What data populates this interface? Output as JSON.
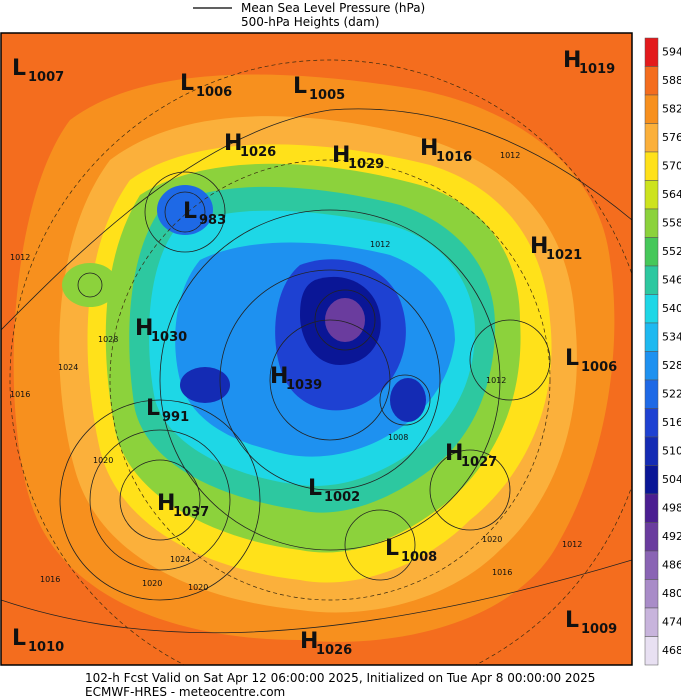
{
  "legend": {
    "items": [
      "Mean Sea Level Pressure (hPa)",
      "500-hPa Heights (dam)"
    ]
  },
  "colorbar": {
    "levels": [
      {
        "value": 594,
        "color": "#e31a1c"
      },
      {
        "value": 588,
        "color": "#f46d1e"
      },
      {
        "value": 582,
        "color": "#f7901e"
      },
      {
        "value": 576,
        "color": "#fbb03b"
      },
      {
        "value": 570,
        "color": "#ffe11a"
      },
      {
        "value": 564,
        "color": "#cde31e"
      },
      {
        "value": 558,
        "color": "#8cd23c"
      },
      {
        "value": 552,
        "color": "#46c85a"
      },
      {
        "value": 546,
        "color": "#2dc8a0"
      },
      {
        "value": 540,
        "color": "#1ed7e6"
      },
      {
        "value": 534,
        "color": "#1eb9f0"
      },
      {
        "value": 528,
        "color": "#1e91f0"
      },
      {
        "value": 522,
        "color": "#1e69e6"
      },
      {
        "value": 516,
        "color": "#1e41d2"
      },
      {
        "value": 510,
        "color": "#142bb4"
      },
      {
        "value": 504,
        "color": "#0a1696"
      },
      {
        "value": 498,
        "color": "#4b1e91"
      },
      {
        "value": 492,
        "color": "#6a3c9e"
      },
      {
        "value": 486,
        "color": "#8a64b4"
      },
      {
        "value": 480,
        "color": "#a98cc8"
      },
      {
        "value": 474,
        "color": "#c8b4dc"
      },
      {
        "value": 468,
        "color": "#e8e0f2"
      }
    ]
  },
  "centers": [
    {
      "type": "L",
      "value": 1007
    },
    {
      "type": "L",
      "value": 1006
    },
    {
      "type": "L",
      "value": 1005
    },
    {
      "type": "H",
      "value": 1019
    },
    {
      "type": "H",
      "value": 1026
    },
    {
      "type": "H",
      "value": 1029
    },
    {
      "type": "H",
      "value": 1016
    },
    {
      "type": "L",
      "value": 983
    },
    {
      "type": "H",
      "value": 1021
    },
    {
      "type": "H",
      "value": 1030
    },
    {
      "type": "L",
      "value": 1006
    },
    {
      "type": "H",
      "value": 1039
    },
    {
      "type": "L",
      "value": 991
    },
    {
      "type": "H",
      "value": 1027
    },
    {
      "type": "L",
      "value": 1002
    },
    {
      "type": "H",
      "value": 1037
    },
    {
      "type": "L",
      "value": 1008
    },
    {
      "type": "L",
      "value": 1010
    },
    {
      "type": "L",
      "value": 1009
    },
    {
      "type": "H",
      "value": 1026
    }
  ],
  "isobar_labels": [
    1012,
    1012,
    1024,
    1016,
    1020,
    1024,
    1020,
    1020,
    1016,
    1016,
    1020,
    1012,
    1012,
    1028,
    1008,
    1012
  ],
  "footer": {
    "line1": "102-h Fcst Valid on Sat Apr 12 06:00:00 2025, Initialized on Tue Apr  8 00:00:00 2025",
    "line2": "ECMWF-HRES - meteocentre.com"
  }
}
